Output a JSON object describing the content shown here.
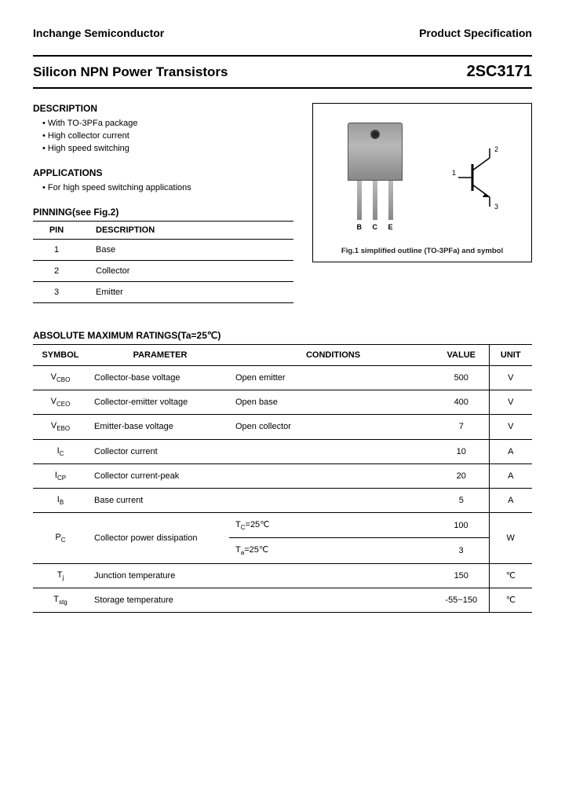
{
  "header": {
    "company": "Inchange Semiconductor",
    "doc_type": "Product Specification"
  },
  "title": {
    "product_line": "Silicon NPN Power Transistors",
    "part_number": "2SC3171"
  },
  "description": {
    "heading": "DESCRIPTION",
    "items": [
      "With TO-3PFa package",
      "High collector current",
      "High speed switching"
    ]
  },
  "applications": {
    "heading": "APPLICATIONS",
    "items": [
      "For high speed switching applications"
    ]
  },
  "pinning": {
    "heading": "PINNING(see Fig.2)",
    "columns": [
      "PIN",
      "DESCRIPTION"
    ],
    "rows": [
      [
        "1",
        "Base"
      ],
      [
        "2",
        "Collector"
      ],
      [
        "3",
        "Emitter"
      ]
    ]
  },
  "figure": {
    "pin_labels": [
      "B",
      "C",
      "E"
    ],
    "symbol_pins": [
      "1",
      "2",
      "3"
    ],
    "caption": "Fig.1 simplified outline (TO-3PFa) and symbol"
  },
  "amr": {
    "heading": "ABSOLUTE MAXIMUM RATINGS(Ta=25℃)",
    "columns": [
      "SYMBOL",
      "PARAMETER",
      "CONDITIONS",
      "VALUE",
      "UNIT"
    ],
    "rows": [
      {
        "sym_html": "V<span class='sub'>CBO</span>",
        "par": "Collector-base voltage",
        "con": "Open emitter",
        "val": "500",
        "unit": "V"
      },
      {
        "sym_html": "V<span class='sub'>CEO</span>",
        "par": "Collector-emitter voltage",
        "con": "Open base",
        "val": "400",
        "unit": "V"
      },
      {
        "sym_html": "V<span class='sub'>EBO</span>",
        "par": "Emitter-base voltage",
        "con": "Open collector",
        "val": "7",
        "unit": "V"
      },
      {
        "sym_html": "I<span class='sub'>C</span>",
        "par": "Collector current",
        "con": "",
        "val": "10",
        "unit": "A"
      },
      {
        "sym_html": "I<span class='sub'>CP</span>",
        "par": "Collector current-peak",
        "con": "",
        "val": "20",
        "unit": "A"
      },
      {
        "sym_html": "I<span class='sub'>B</span>",
        "par": "Base current",
        "con": "",
        "val": "5",
        "unit": "A"
      },
      {
        "sym_html": "P<span class='sub'>C</span>",
        "par": "Collector power dissipation",
        "split": [
          {
            "con": "T<span class='sub'>C</span>=25℃",
            "val": "100"
          },
          {
            "con": "T<span class='sub'>a</span>=25℃",
            "val": "3"
          }
        ],
        "unit": "W"
      },
      {
        "sym_html": "T<span class='sub'>j</span>",
        "par": "Junction temperature",
        "con": "",
        "val": "150",
        "unit": "℃"
      },
      {
        "sym_html": "T<span class='sub'>stg</span>",
        "par": "Storage temperature",
        "con": "",
        "val": "-55~150",
        "unit": "℃"
      }
    ]
  }
}
